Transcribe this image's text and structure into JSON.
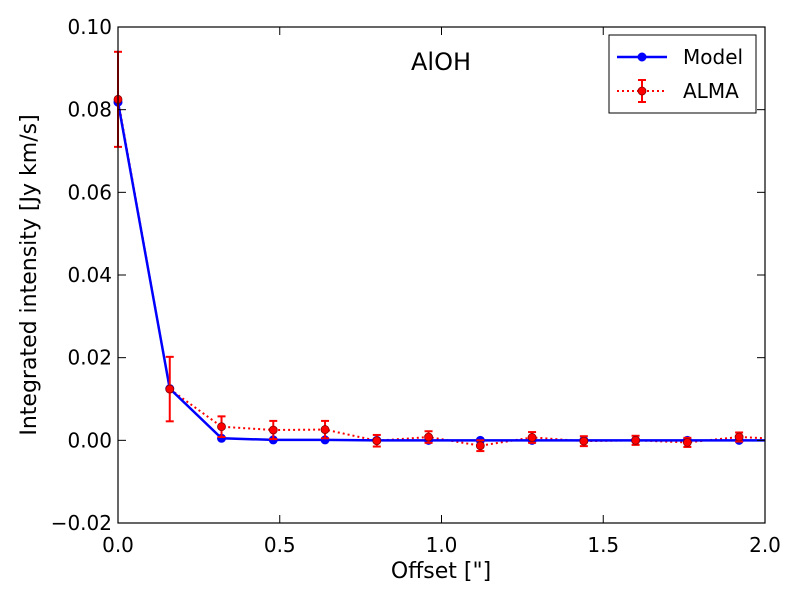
{
  "chart_data": {
    "type": "line",
    "title": "AlOH",
    "xlabel": "Offset [\"]",
    "ylabel": "Integrated intensity [Jy km/s]",
    "xlim": [
      0.0,
      2.0
    ],
    "ylim": [
      -0.02,
      0.1
    ],
    "xticks": [
      0.0,
      0.5,
      1.0,
      1.5,
      2.0
    ],
    "xtick_labels": [
      "0.0",
      "0.5",
      "1.0",
      "1.5",
      "2.0"
    ],
    "yticks": [
      -0.02,
      0.0,
      0.02,
      0.04,
      0.06,
      0.08,
      0.1
    ],
    "ytick_labels": [
      "−0.02",
      "0.00",
      "0.02",
      "0.04",
      "0.06",
      "0.08",
      "0.10"
    ],
    "grid": false,
    "legend_position": "top-right",
    "series": [
      {
        "name": "Model",
        "color": "#0000ff",
        "style": "solid-line-with-circle-markers",
        "x": [
          0.0,
          0.16,
          0.32,
          0.48,
          0.64,
          0.8,
          0.96,
          1.12,
          1.28,
          1.44,
          1.6,
          1.76,
          1.92,
          2.0
        ],
        "y": [
          0.0818,
          0.0125,
          0.0005,
          0.0001,
          0.0001,
          0.0,
          0.0,
          0.0,
          0.0,
          0.0,
          0.0,
          0.0,
          0.0,
          0.0
        ]
      },
      {
        "name": "ALMA",
        "color": "#ff0000",
        "style": "dotted-line-with-errorbars",
        "x": [
          0.0,
          0.16,
          0.32,
          0.48,
          0.64,
          0.8,
          0.96,
          1.12,
          1.28,
          1.44,
          1.6,
          1.76,
          1.92,
          2.0
        ],
        "y": [
          0.0825,
          0.0124,
          0.0033,
          0.0025,
          0.0026,
          -0.0001,
          0.0008,
          -0.0013,
          0.0007,
          -0.0002,
          0.0,
          -0.0005,
          0.0008,
          0.0005
        ],
        "yerr": [
          0.0115,
          0.0078,
          0.0025,
          0.0022,
          0.0021,
          0.0014,
          0.0014,
          0.0013,
          0.0013,
          0.0012,
          0.0011,
          0.0011,
          0.0011,
          0.0
        ]
      }
    ]
  }
}
